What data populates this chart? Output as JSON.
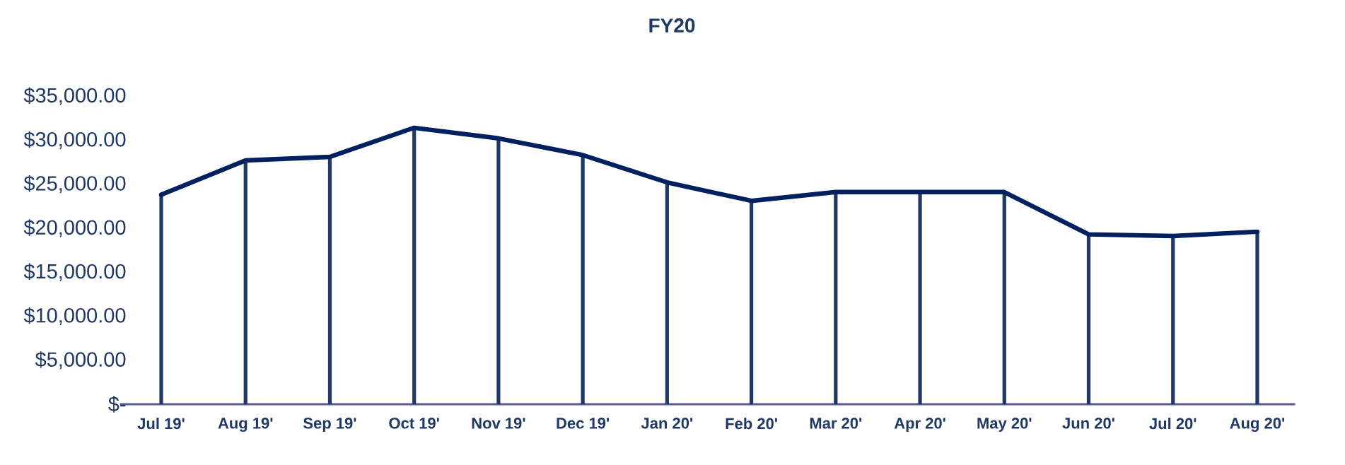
{
  "chart_data": {
    "type": "line",
    "title": "FY20",
    "categories": [
      "Jul 19'",
      "Aug 19'",
      "Sep 19'",
      "Oct 19'",
      "Nov 19'",
      "Dec 19'",
      "Jan 20'",
      "Feb 20'",
      "Mar 20'",
      "Apr 20'",
      "May 20'",
      "Jun 20'",
      "Jul 20'",
      "Aug 20'"
    ],
    "series": [
      {
        "type": "bar",
        "color": "#1f3864",
        "values": [
          23800,
          27700,
          28100,
          31400,
          30200,
          28300,
          25200,
          23100,
          24100,
          24100,
          24100,
          19300,
          19100,
          19600
        ]
      },
      {
        "color": "#002060",
        "values": [
          23800,
          27700,
          28100,
          31400,
          30200,
          28300,
          25200,
          23100,
          24100,
          24100,
          24100,
          19300,
          19100,
          19600
        ]
      }
    ],
    "marker": "none",
    "ylim": [
      0,
      35000
    ],
    "yticks": [
      {
        "value": 0,
        "label": "$-"
      },
      {
        "value": 5000,
        "label": "$5,000.00"
      },
      {
        "value": 10000,
        "label": "$10,000.00"
      },
      {
        "value": 15000,
        "label": "$15,000.00"
      },
      {
        "value": 20000,
        "label": "$20,000.00"
      },
      {
        "value": 25000,
        "label": "$25,000.00"
      },
      {
        "value": 30000,
        "label": "$30,000.00"
      },
      {
        "value": 35000,
        "label": "$35,000.00"
      }
    ]
  }
}
